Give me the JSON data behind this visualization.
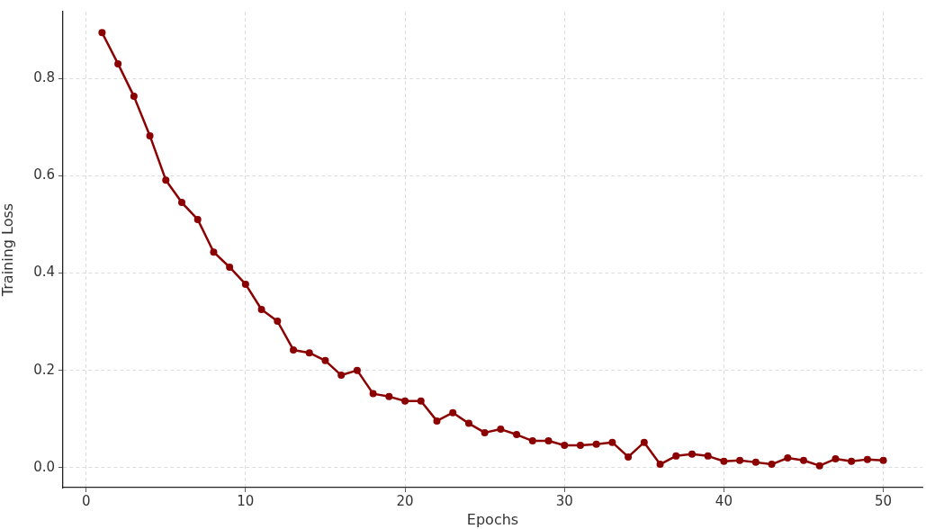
{
  "chart_data": {
    "type": "line",
    "xlabel": "Epochs",
    "ylabel": "Training Loss",
    "x": [
      1,
      2,
      3,
      4,
      5,
      6,
      7,
      8,
      9,
      10,
      11,
      12,
      13,
      14,
      15,
      16,
      17,
      18,
      19,
      20,
      21,
      22,
      23,
      24,
      25,
      26,
      27,
      28,
      29,
      30,
      31,
      32,
      33,
      34,
      35,
      36,
      37,
      38,
      39,
      40,
      41,
      42,
      43,
      44,
      45,
      46,
      47,
      48,
      49,
      50
    ],
    "series": [
      {
        "color": "#8b0000",
        "values": [
          0.894,
          0.83,
          0.763,
          0.682,
          0.591,
          0.545,
          0.51,
          0.443,
          0.412,
          0.377,
          0.325,
          0.301,
          0.242,
          0.236,
          0.22,
          0.19,
          0.2,
          0.152,
          0.146,
          0.137,
          0.137,
          0.096,
          0.113,
          0.091,
          0.072,
          0.079,
          0.068,
          0.055,
          0.055,
          0.046,
          0.046,
          0.048,
          0.052,
          0.022,
          0.052,
          0.007,
          0.024,
          0.028,
          0.024,
          0.013,
          0.015,
          0.011,
          0.007,
          0.02,
          0.015,
          0.004,
          0.018,
          0.013,
          0.017,
          0.015
        ]
      }
    ],
    "xlim": [
      -1.45,
      52.45
    ],
    "xticks": [
      0,
      10,
      20,
      30,
      40,
      50
    ],
    "ylim": [
      -0.041,
      0.937
    ],
    "yticks": [
      {
        "value": 0,
        "label": "0.0"
      },
      {
        "value": 0.2,
        "label": "0.2"
      },
      {
        "value": 0.4,
        "label": "0.4"
      },
      {
        "value": 0.6,
        "label": "0.6"
      },
      {
        "value": 0.8,
        "label": "0.8"
      }
    ],
    "grid": true,
    "marker": "circle",
    "line_style": "solid",
    "legend": false
  }
}
